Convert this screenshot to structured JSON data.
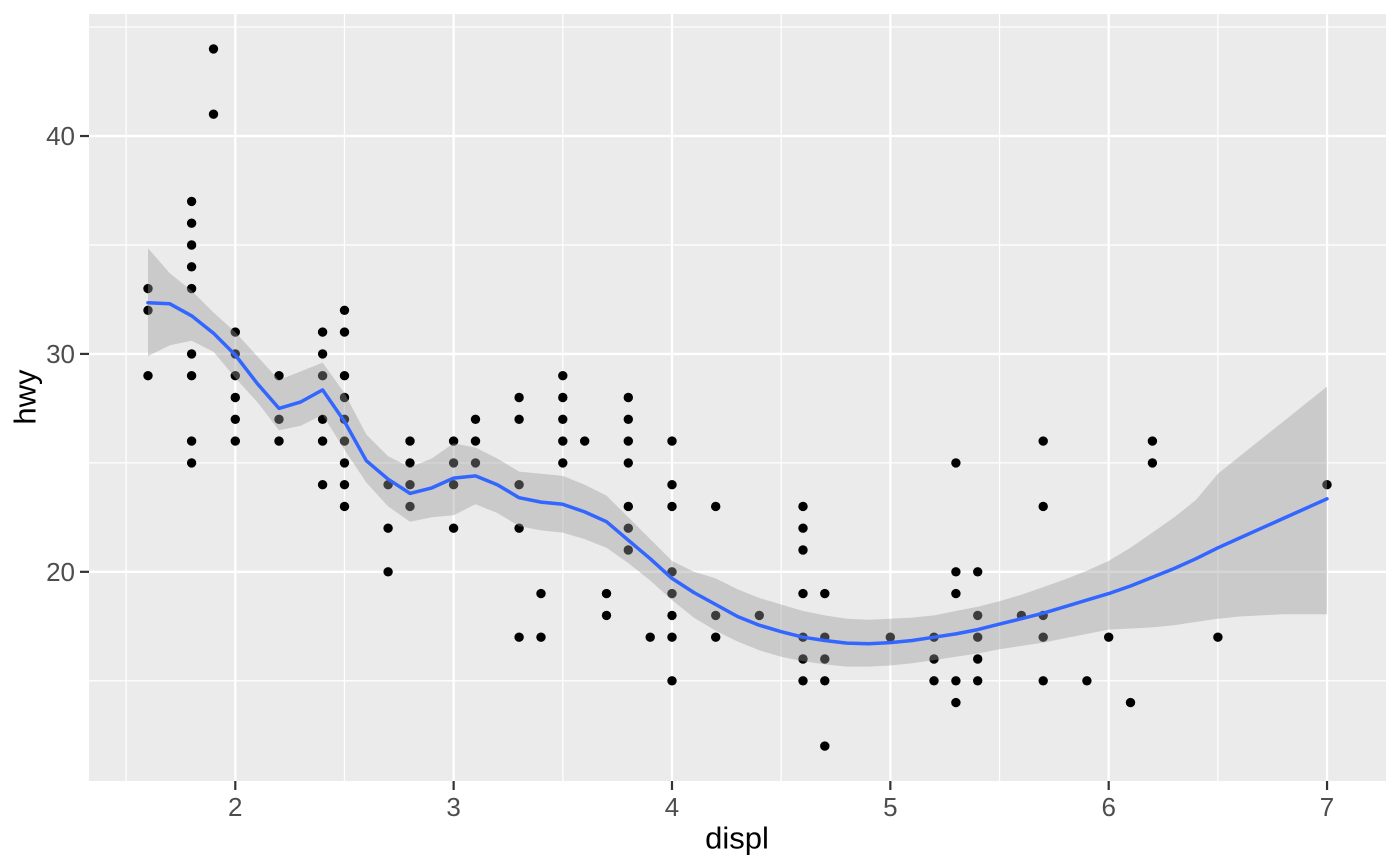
{
  "figure": {
    "background": "#FFFFFF",
    "panel_background": "#EBEBEB",
    "grid_color": "#FFFFFF",
    "tick_mark_color": "#333333",
    "axis_text_color": "#4D4D4D",
    "axis_title_color": "#000000"
  },
  "chart_data": {
    "type": "scatter",
    "title": "",
    "xlabel": "displ",
    "ylabel": "hwy",
    "xlim": [
      1.33,
      7.27
    ],
    "ylim": [
      10.4,
      45.6
    ],
    "x_major_ticks": [
      2,
      3,
      4,
      5,
      6,
      7
    ],
    "x_minor_ticks": [
      1.5,
      2.5,
      3.5,
      4.5,
      5.5,
      6.5
    ],
    "y_major_ticks": [
      20,
      30,
      40
    ],
    "y_minor_ticks": [
      15,
      25,
      35,
      45
    ],
    "grid": true,
    "legend": "none",
    "point_color": "#000000",
    "point_radius": 4.7,
    "points": [
      [
        1.6,
        33
      ],
      [
        1.6,
        32
      ],
      [
        1.6,
        29
      ],
      [
        1.8,
        37
      ],
      [
        1.8,
        36
      ],
      [
        1.8,
        35
      ],
      [
        1.8,
        34
      ],
      [
        1.8,
        33
      ],
      [
        1.8,
        30
      ],
      [
        1.8,
        29
      ],
      [
        1.8,
        26
      ],
      [
        1.8,
        25
      ],
      [
        1.9,
        44
      ],
      [
        1.9,
        41
      ],
      [
        2.0,
        31
      ],
      [
        2.0,
        30
      ],
      [
        2.0,
        29
      ],
      [
        2.0,
        28
      ],
      [
        2.0,
        27
      ],
      [
        2.0,
        26
      ],
      [
        2.2,
        29
      ],
      [
        2.2,
        27
      ],
      [
        2.2,
        26
      ],
      [
        2.4,
        31
      ],
      [
        2.4,
        30
      ],
      [
        2.4,
        29
      ],
      [
        2.4,
        27
      ],
      [
        2.4,
        26
      ],
      [
        2.4,
        24
      ],
      [
        2.5,
        32
      ],
      [
        2.5,
        31
      ],
      [
        2.5,
        29
      ],
      [
        2.5,
        28
      ],
      [
        2.5,
        27
      ],
      [
        2.5,
        26
      ],
      [
        2.5,
        25
      ],
      [
        2.5,
        24
      ],
      [
        2.5,
        23
      ],
      [
        2.7,
        24
      ],
      [
        2.7,
        22
      ],
      [
        2.7,
        20
      ],
      [
        2.8,
        26
      ],
      [
        2.8,
        25
      ],
      [
        2.8,
        24
      ],
      [
        2.8,
        23
      ],
      [
        3.0,
        26
      ],
      [
        3.0,
        25
      ],
      [
        3.0,
        24
      ],
      [
        3.0,
        22
      ],
      [
        3.1,
        27
      ],
      [
        3.1,
        26
      ],
      [
        3.1,
        25
      ],
      [
        3.3,
        28
      ],
      [
        3.3,
        27
      ],
      [
        3.3,
        24
      ],
      [
        3.3,
        22
      ],
      [
        3.3,
        17
      ],
      [
        3.4,
        19
      ],
      [
        3.4,
        17
      ],
      [
        3.5,
        29
      ],
      [
        3.5,
        28
      ],
      [
        3.5,
        27
      ],
      [
        3.5,
        26
      ],
      [
        3.5,
        25
      ],
      [
        3.6,
        26
      ],
      [
        3.7,
        19
      ],
      [
        3.7,
        18
      ],
      [
        3.8,
        28
      ],
      [
        3.8,
        27
      ],
      [
        3.8,
        26
      ],
      [
        3.8,
        25
      ],
      [
        3.8,
        23
      ],
      [
        3.8,
        22
      ],
      [
        3.8,
        21
      ],
      [
        3.9,
        17
      ],
      [
        4.0,
        26
      ],
      [
        4.0,
        24
      ],
      [
        4.0,
        23
      ],
      [
        4.0,
        20
      ],
      [
        4.0,
        19
      ],
      [
        4.0,
        18
      ],
      [
        4.0,
        17
      ],
      [
        4.0,
        15
      ],
      [
        4.2,
        23
      ],
      [
        4.2,
        18
      ],
      [
        4.2,
        17
      ],
      [
        4.4,
        18
      ],
      [
        4.6,
        23
      ],
      [
        4.6,
        22
      ],
      [
        4.6,
        21
      ],
      [
        4.6,
        19
      ],
      [
        4.6,
        17
      ],
      [
        4.6,
        16
      ],
      [
        4.6,
        15
      ],
      [
        4.7,
        19
      ],
      [
        4.7,
        17
      ],
      [
        4.7,
        16
      ],
      [
        4.7,
        15
      ],
      [
        4.7,
        12
      ],
      [
        5.0,
        17
      ],
      [
        5.2,
        17
      ],
      [
        5.2,
        16
      ],
      [
        5.2,
        15
      ],
      [
        5.3,
        25
      ],
      [
        5.3,
        20
      ],
      [
        5.3,
        19
      ],
      [
        5.3,
        15
      ],
      [
        5.3,
        14
      ],
      [
        5.4,
        20
      ],
      [
        5.4,
        18
      ],
      [
        5.4,
        17
      ],
      [
        5.4,
        16
      ],
      [
        5.4,
        15
      ],
      [
        5.6,
        18
      ],
      [
        5.7,
        26
      ],
      [
        5.7,
        23
      ],
      [
        5.7,
        18
      ],
      [
        5.7,
        17
      ],
      [
        5.7,
        15
      ],
      [
        5.9,
        15
      ],
      [
        6.0,
        17
      ],
      [
        6.1,
        14
      ],
      [
        6.2,
        26
      ],
      [
        6.2,
        25
      ],
      [
        6.5,
        17
      ],
      [
        7.0,
        24
      ]
    ],
    "smooth": {
      "method": "loess",
      "line_color": "#3366FF",
      "line_width": 3.5,
      "ribbon_fill": "rgba(153,153,153,0.4)",
      "x": [
        1.6,
        1.7,
        1.8,
        1.9,
        2.0,
        2.1,
        2.2,
        2.3,
        2.4,
        2.5,
        2.6,
        2.7,
        2.8,
        2.9,
        3.0,
        3.1,
        3.2,
        3.3,
        3.4,
        3.5,
        3.6,
        3.7,
        3.8,
        3.9,
        4.0,
        4.1,
        4.2,
        4.3,
        4.4,
        4.5,
        4.6,
        4.7,
        4.8,
        4.9,
        5.0,
        5.1,
        5.2,
        5.3,
        5.4,
        5.5,
        5.6,
        5.7,
        5.8,
        5.9,
        6.0,
        6.1,
        6.2,
        6.3,
        6.4,
        6.5,
        6.6,
        6.7,
        6.8,
        6.9,
        7.0
      ],
      "y": [
        32.35,
        32.3,
        31.75,
        30.95,
        29.95,
        28.65,
        27.5,
        27.8,
        28.35,
        26.9,
        25.1,
        24.25,
        23.6,
        23.85,
        24.3,
        24.4,
        24.0,
        23.4,
        23.2,
        23.1,
        22.75,
        22.3,
        21.45,
        20.6,
        19.7,
        19.05,
        18.5,
        17.95,
        17.55,
        17.25,
        17.0,
        16.85,
        16.73,
        16.7,
        16.75,
        16.85,
        17.0,
        17.15,
        17.35,
        17.6,
        17.85,
        18.1,
        18.4,
        18.7,
        19.0,
        19.35,
        19.75,
        20.15,
        20.6,
        21.1,
        21.55,
        22.0,
        22.45,
        22.9,
        23.35
      ],
      "lo": [
        29.9,
        30.4,
        30.6,
        30.1,
        28.9,
        27.8,
        26.5,
        26.7,
        27.2,
        25.6,
        24.1,
        23.0,
        22.3,
        22.5,
        22.6,
        23.1,
        22.7,
        22.1,
        21.9,
        21.8,
        21.5,
        21.1,
        20.4,
        19.6,
        18.7,
        17.9,
        17.3,
        16.8,
        16.4,
        16.1,
        15.9,
        15.75,
        15.65,
        15.65,
        15.7,
        15.8,
        15.95,
        16.1,
        16.25,
        16.45,
        16.6,
        16.75,
        16.95,
        17.15,
        17.35,
        17.4,
        17.45,
        17.55,
        17.7,
        17.85,
        17.95,
        18.0,
        18.05,
        18.05,
        18.05
      ],
      "hi": [
        34.85,
        33.7,
        32.9,
        31.9,
        31.0,
        29.9,
        28.8,
        29.2,
        29.6,
        28.2,
        26.3,
        25.3,
        24.8,
        25.2,
        25.9,
        25.7,
        25.2,
        24.6,
        24.5,
        24.4,
        24.0,
        23.5,
        22.5,
        21.5,
        20.5,
        20.0,
        19.7,
        19.2,
        18.8,
        18.5,
        18.2,
        18.0,
        17.85,
        17.8,
        17.85,
        17.9,
        18.0,
        18.2,
        18.4,
        18.65,
        18.95,
        19.3,
        19.65,
        20.05,
        20.5,
        21.1,
        21.8,
        22.5,
        23.3,
        24.5,
        25.3,
        26.1,
        26.9,
        27.7,
        28.5
      ]
    }
  }
}
